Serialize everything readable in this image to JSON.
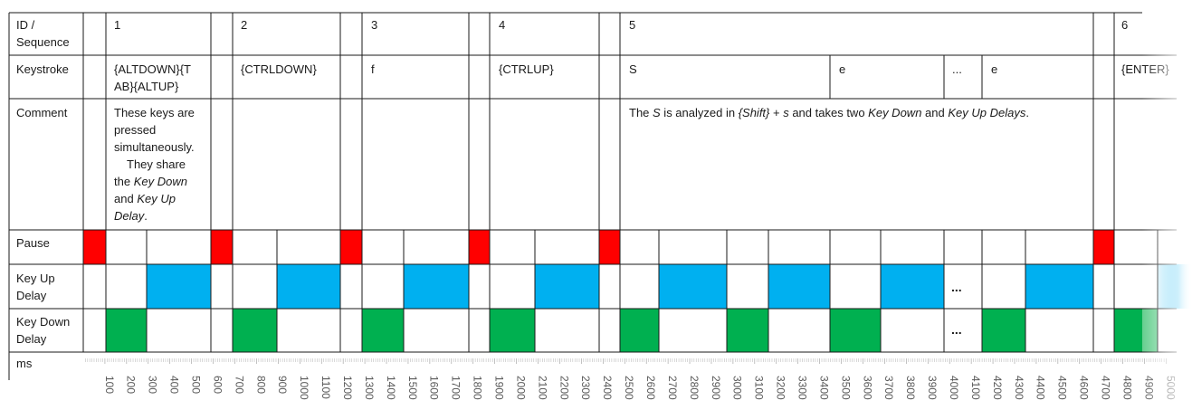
{
  "rows": {
    "id": "ID / Sequence",
    "keystroke": "Keystroke",
    "comment": "Comment",
    "pause": "Pause",
    "key_up": "Key Up Delay",
    "key_down": "Key Down Delay",
    "ms": "ms"
  },
  "ids": [
    "1",
    "2",
    "3",
    "4",
    "5",
    "6"
  ],
  "keystrokes": [
    "{ALTDOWN}{TAB}{ALTUP}",
    "{CTRLDOWN}",
    "f",
    "{CTRLUP}",
    "S",
    "e",
    "...",
    "e",
    "{ENTER}"
  ],
  "comments": {
    "c1": [
      "These keys are",
      "pressed",
      "simultaneously.",
      "They share",
      "the ",
      "Key Down",
      "and ",
      "Key Up",
      "Delay",
      "."
    ],
    "c5": [
      "The ",
      "S",
      " is analyzed in ",
      "{Shift}",
      " + ",
      "s",
      " and takes two ",
      "Key Down",
      " and ",
      "Key Up Delays",
      "."
    ]
  },
  "ellipsis": "...",
  "colors": {
    "pause": "#ff0000",
    "key_up": "#00b0f0",
    "key_down": "#00b050",
    "line": "#1a1a1a",
    "grid": "#bfbfbf"
  },
  "axis": {
    "start": 100,
    "end": 5000,
    "step": 100
  }
}
